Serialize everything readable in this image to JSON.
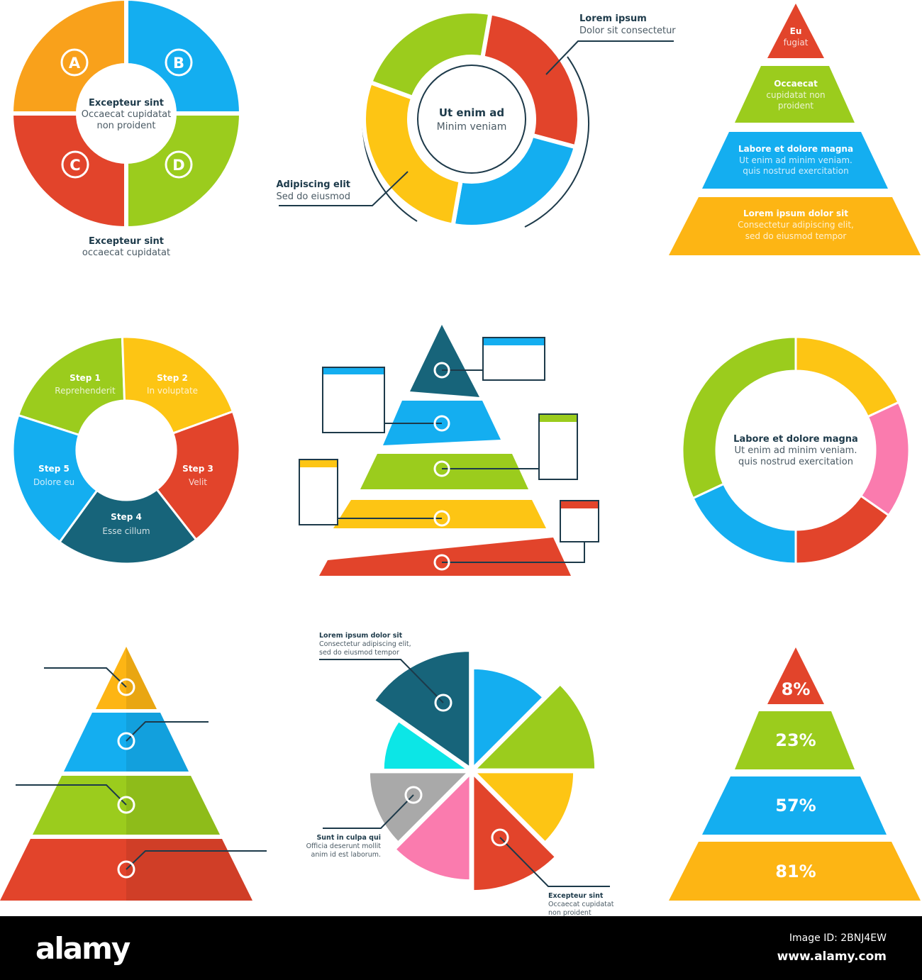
{
  "colors": {
    "orange": "#f9a11b",
    "blue": "#14aef0",
    "red": "#e2442b",
    "green": "#9bcc1d",
    "yellow": "#fdc514",
    "teal": "#17647a",
    "pink": "#fa7bae",
    "gray": "#a9a9a9",
    "cyan": "#0ce6e6",
    "navy_text": "#1d3a4a"
  },
  "quad_ring": {
    "letters": [
      "A",
      "B",
      "C",
      "D"
    ],
    "center": {
      "title": "Excepteur sint",
      "line1": "Occaecat cupidatat",
      "line2": "non proident"
    },
    "caption": {
      "title": "Excepteur sint",
      "text": "occaecat cupidatat"
    }
  },
  "cycle": {
    "center": {
      "title": "Ut enim ad",
      "subtitle": "Minim veniam"
    },
    "callout_right": {
      "title": "Lorem ipsum",
      "text": "Dolor sit consectetur"
    },
    "callout_left": {
      "title": "Adipiscing elit",
      "text": "Sed do eiusmod"
    }
  },
  "pyramid_text": {
    "layers": [
      {
        "title": "Eu",
        "lines": [
          "fugiat"
        ]
      },
      {
        "title": "Occaecat",
        "lines": [
          "cupidatat non",
          "proident"
        ]
      },
      {
        "title": "Labore et dolore magna",
        "lines": [
          "Ut enim ad minim veniam.",
          "quis nostrud exercitation"
        ]
      },
      {
        "title": "Lorem ipsum dolor sit",
        "lines": [
          "Consectetur adipiscing elit,",
          "sed do eiusmod tempor"
        ]
      }
    ]
  },
  "puzzle_ring": {
    "steps": [
      {
        "title": "Step 1",
        "text": "Reprehenderit"
      },
      {
        "title": "Step 2",
        "text": "In voluptate"
      },
      {
        "title": "Step 3",
        "text": "Velit"
      },
      {
        "title": "Step 4",
        "text": "Esse cillum"
      },
      {
        "title": "Step 5",
        "text": "Dolore eu"
      }
    ]
  },
  "donut": {
    "title": "Labore et dolore magna",
    "line1": "Ut enim ad minim veniam.",
    "line2": "quis nostrud exercitation"
  },
  "pie": {
    "callout_top": {
      "title": "Lorem ipsum dolor sit",
      "line1": "Consectetur adipiscing elit,",
      "line2": "sed do eiusmod tempor"
    },
    "callout_left": {
      "title": "Sunt in culpa qui",
      "line1": "Officia deserunt mollit",
      "line2": "anim id est laborum."
    },
    "callout_bottom": {
      "title": "Excepteur sint",
      "line1": "Occaecat cupidatat",
      "line2": "non proident"
    }
  },
  "percent_pyramid": {
    "values": [
      "8%",
      "23%",
      "57%",
      "81%"
    ]
  },
  "footer": {
    "logo": "alamy",
    "image_id": "Image ID: 2BNJ4EW",
    "url": "www.alamy.com"
  }
}
